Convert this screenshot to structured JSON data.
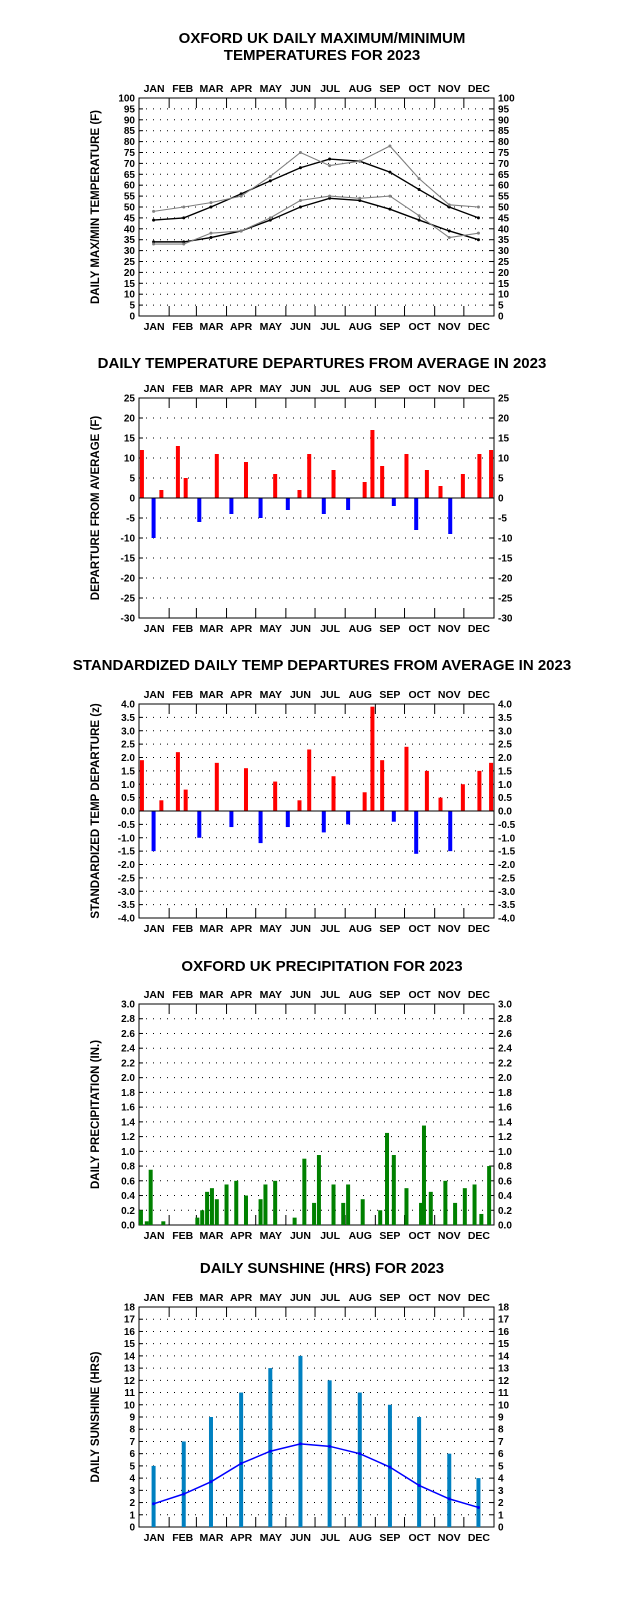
{
  "chart_data": [
    {
      "type": "line",
      "title": "OXFORD UK DAILY MAXIMUM/MINIMUM",
      "subtitle": "TEMPERATURES FOR 2023",
      "ylabel": "DAILY MAX/MIN TEMPERATURE (F)",
      "xlabel": "",
      "months": [
        "JAN",
        "FEB",
        "MAR",
        "APR",
        "MAY",
        "JUN",
        "JUL",
        "AUG",
        "SEP",
        "OCT",
        "NOV",
        "DEC"
      ],
      "ylim": [
        0,
        100
      ],
      "yticks": [
        "0",
        "5",
        "10",
        "15",
        "20",
        "25",
        "30",
        "35",
        "40",
        "45",
        "50",
        "55",
        "60",
        "65",
        "70",
        "75",
        "80",
        "85",
        "90",
        "95",
        "100"
      ],
      "grid": "dotted",
      "colors": {
        "observed": "#808080",
        "normal": "#000000"
      },
      "series": [
        {
          "key": "max_normal",
          "x": [
            15,
            46,
            74,
            105,
            135,
            166,
            196,
            227,
            258,
            288,
            319,
            349
          ],
          "values": [
            44,
            45,
            50,
            56,
            62,
            68,
            72,
            71,
            66,
            58,
            50,
            45
          ]
        },
        {
          "key": "min_normal",
          "x": [
            15,
            46,
            74,
            105,
            135,
            166,
            196,
            227,
            258,
            288,
            319,
            349
          ],
          "values": [
            34,
            34,
            36,
            39,
            44,
            50,
            54,
            53,
            49,
            44,
            39,
            35
          ]
        },
        {
          "key": "observed_max",
          "x": [
            15,
            46,
            74,
            105,
            135,
            166,
            196,
            227,
            258,
            288,
            319,
            349
          ],
          "values": [
            48,
            50,
            52,
            55,
            64,
            75,
            69,
            71,
            78,
            63,
            51,
            50
          ]
        },
        {
          "key": "observed_min",
          "x": [
            15,
            46,
            74,
            105,
            135,
            166,
            196,
            227,
            258,
            288,
            319,
            349
          ],
          "values": [
            33,
            33,
            38,
            39,
            45,
            53,
            55,
            54,
            55,
            46,
            36,
            38
          ]
        }
      ]
    },
    {
      "type": "bar",
      "title": "DAILY TEMPERATURE DEPARTURES FROM AVERAGE IN 2023",
      "ylabel": "DEPARTURE FROM AVERAGE (F)",
      "xlabel": "",
      "months": [
        "JAN",
        "FEB",
        "MAR",
        "APR",
        "MAY",
        "JUN",
        "JUL",
        "AUG",
        "SEP",
        "OCT",
        "NOV",
        "DEC"
      ],
      "ylim": [
        -30,
        25
      ],
      "yticks": [
        "-30",
        "-25",
        "-20",
        "-15",
        "-10",
        "-5",
        "0",
        "5",
        "10",
        "15",
        "20",
        "25"
      ],
      "grid": "dotted",
      "colors": {
        "positive": "#ff0000",
        "negative": "#0000ff"
      },
      "x": [
        3,
        15,
        23,
        40,
        48,
        62,
        80,
        95,
        110,
        125,
        140,
        153,
        165,
        175,
        190,
        200,
        215,
        232,
        240,
        250,
        262,
        275,
        285,
        296,
        310,
        320,
        333,
        350,
        362
      ],
      "values": [
        12,
        -10,
        2,
        13,
        5,
        -6,
        11,
        -4,
        9,
        -5,
        6,
        -3,
        2,
        11,
        -4,
        7,
        -3,
        4,
        17,
        8,
        -2,
        11,
        -8,
        7,
        3,
        -9,
        6,
        11,
        12
      ]
    },
    {
      "type": "bar",
      "title": "STANDARDIZED DAILY TEMP DEPARTURES FROM AVERAGE IN 2023",
      "ylabel": "STANDARDIZED TEMP DEPARTURE (z)",
      "xlabel": "",
      "months": [
        "JAN",
        "FEB",
        "MAR",
        "APR",
        "MAY",
        "JUN",
        "JUL",
        "AUG",
        "SEP",
        "OCT",
        "NOV",
        "DEC"
      ],
      "ylim": [
        -4.0,
        4.0
      ],
      "yticks": [
        "-4.0",
        "-3.5",
        "-3.0",
        "-2.5",
        "-2.0",
        "-1.5",
        "-1.0",
        "-0.5",
        "0.0",
        "0.5",
        "1.0",
        "1.5",
        "2.0",
        "2.5",
        "3.0",
        "3.5",
        "4.0"
      ],
      "grid": "dotted",
      "colors": {
        "positive": "#ff0000",
        "negative": "#0000ff"
      },
      "x": [
        3,
        15,
        23,
        40,
        48,
        62,
        80,
        95,
        110,
        125,
        140,
        153,
        165,
        175,
        190,
        200,
        215,
        232,
        240,
        250,
        262,
        275,
        285,
        296,
        310,
        320,
        333,
        350,
        362
      ],
      "values": [
        1.9,
        -1.5,
        0.4,
        2.2,
        0.8,
        -1.0,
        1.8,
        -0.6,
        1.6,
        -1.2,
        1.1,
        -0.6,
        0.4,
        2.3,
        -0.8,
        1.3,
        -0.5,
        0.7,
        3.9,
        1.9,
        -0.4,
        2.4,
        -1.6,
        1.5,
        0.5,
        -1.5,
        1.0,
        1.5,
        1.8
      ]
    },
    {
      "type": "bar",
      "title": "OXFORD UK PRECIPITATION FOR 2023",
      "ylabel": "DAILY PRECIPITATION (IN.)",
      "xlabel": "",
      "months": [
        "JAN",
        "FEB",
        "MAR",
        "APR",
        "MAY",
        "JUN",
        "JUL",
        "AUG",
        "SEP",
        "OCT",
        "NOV",
        "DEC"
      ],
      "ylim": [
        0.0,
        3.0
      ],
      "yticks": [
        "0.0",
        "0.2",
        "0.4",
        "0.6",
        "0.8",
        "1.0",
        "1.2",
        "1.4",
        "1.6",
        "1.8",
        "2.0",
        "2.2",
        "2.4",
        "2.6",
        "2.8",
        "3.0"
      ],
      "grid": "dotted",
      "colors": {
        "bars": "#008000"
      },
      "x": [
        2,
        8,
        12,
        25,
        60,
        65,
        70,
        75,
        80,
        90,
        100,
        110,
        125,
        130,
        140,
        160,
        170,
        180,
        185,
        200,
        210,
        215,
        230,
        248,
        255,
        262,
        275,
        290,
        293,
        300,
        315,
        325,
        335,
        345,
        352,
        360
      ],
      "values": [
        0.2,
        0.05,
        0.75,
        0.05,
        0.1,
        0.2,
        0.45,
        0.5,
        0.35,
        0.55,
        0.6,
        0.4,
        0.35,
        0.55,
        0.6,
        0.1,
        0.9,
        0.3,
        0.95,
        0.55,
        0.3,
        0.55,
        0.35,
        0.2,
        1.25,
        0.95,
        0.5,
        0.3,
        1.35,
        0.45,
        0.6,
        0.3,
        0.5,
        0.55,
        0.15,
        0.8
      ]
    },
    {
      "type": "bar",
      "title": "DAILY SUNSHINE (HRS) FOR 2023",
      "ylabel": "DAILY SUNSHINE (HRS)",
      "xlabel": "",
      "months": [
        "JAN",
        "FEB",
        "MAR",
        "APR",
        "MAY",
        "JUN",
        "JUL",
        "AUG",
        "SEP",
        "OCT",
        "NOV",
        "DEC"
      ],
      "ylim": [
        0,
        18
      ],
      "yticks": [
        "0",
        "1",
        "2",
        "3",
        "4",
        "5",
        "6",
        "7",
        "8",
        "9",
        "10",
        "11",
        "12",
        "13",
        "14",
        "15",
        "16",
        "17",
        "18"
      ],
      "grid": "dotted",
      "colors": {
        "bars": "#0080c0",
        "average": "#0000ff"
      },
      "x": [
        15,
        46,
        74,
        105,
        135,
        166,
        196,
        227,
        258,
        288,
        319,
        349
      ],
      "values": [
        5,
        7,
        9,
        11,
        13,
        14,
        12,
        11,
        10,
        9,
        6,
        4
      ],
      "average_x": [
        15,
        46,
        74,
        105,
        135,
        166,
        196,
        227,
        258,
        288,
        319,
        349
      ],
      "average": [
        1.9,
        2.7,
        3.7,
        5.2,
        6.2,
        6.8,
        6.6,
        6.0,
        4.9,
        3.4,
        2.3,
        1.6
      ]
    }
  ]
}
